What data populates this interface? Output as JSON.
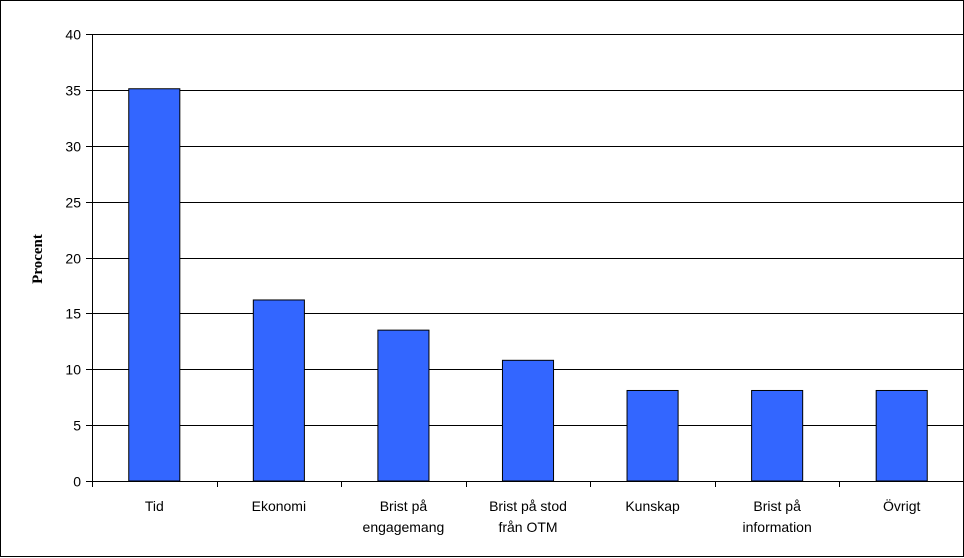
{
  "chart_data": {
    "type": "bar",
    "ylabel": "Procent",
    "xlabel": "",
    "ylim": [
      0,
      40
    ],
    "ytick_step": 5,
    "grid": true,
    "categories": [
      [
        "Tid"
      ],
      [
        "Ekonomi"
      ],
      [
        "Brist på",
        "engagemang"
      ],
      [
        "Brist på stod",
        "från OTM"
      ],
      [
        "Kunskap"
      ],
      [
        "Brist på",
        "information"
      ],
      [
        "Övrigt"
      ]
    ],
    "values": [
      35.1,
      16.2,
      13.5,
      10.8,
      8.1,
      8.1,
      8.1
    ],
    "bar_color": "#3366ff"
  }
}
